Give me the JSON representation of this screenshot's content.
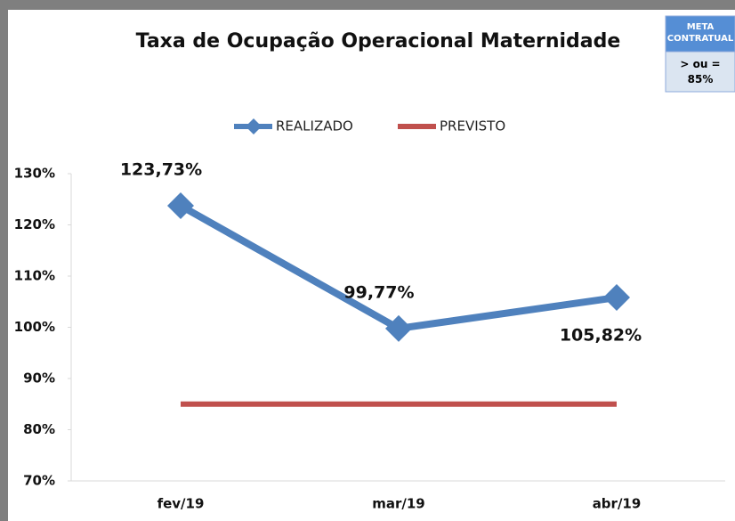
{
  "chart_data": {
    "type": "line",
    "title": "Taxa de Ocupação Operacional Maternidade",
    "annotation": {
      "title": "META CONTRATUAL",
      "text": "> ou = 85%"
    },
    "categories": [
      "fev/19",
      "mar/19",
      "abr/19"
    ],
    "series": [
      {
        "name": "REALIZADO",
        "color": "#4f81bd",
        "values": [
          123.73,
          99.77,
          105.82
        ],
        "value_labels": [
          "123,73%",
          "99,77%",
          "105,82%"
        ],
        "marker": "diamond"
      },
      {
        "name": "PREVISTO",
        "color": "#c0504d",
        "values": [
          85,
          85,
          85
        ]
      }
    ],
    "ylim": [
      70,
      130
    ],
    "yticks": [
      {
        "value": 70,
        "label": "70%"
      },
      {
        "value": 80,
        "label": "80%"
      },
      {
        "value": 90,
        "label": "90%"
      },
      {
        "value": 100,
        "label": "100%"
      },
      {
        "value": 110,
        "label": "110%"
      },
      {
        "value": 120,
        "label": "120%"
      },
      {
        "value": 130,
        "label": "130%"
      }
    ],
    "legend": "top",
    "grid": false
  }
}
